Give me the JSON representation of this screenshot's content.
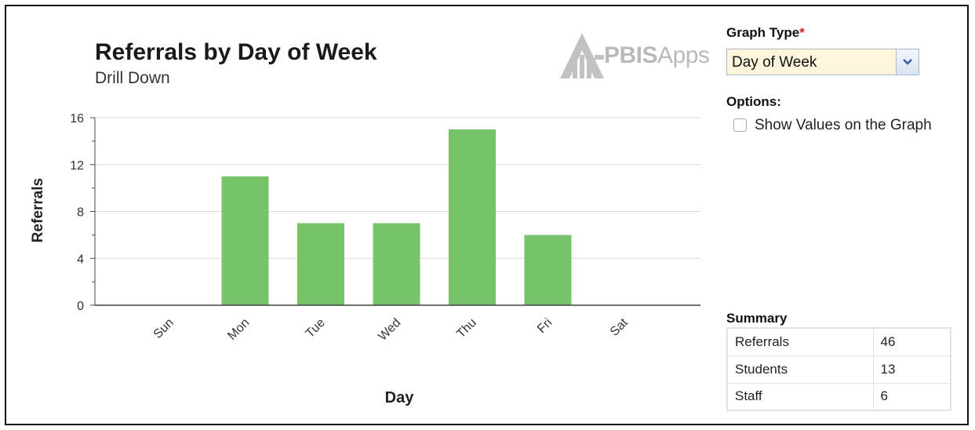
{
  "panel": {
    "graph_type_label": "Graph Type",
    "required_mark": "*",
    "graph_type_value": "Day of Week",
    "options_label": "Options:",
    "show_values_label": "Show Values on the Graph",
    "show_values_checked": false,
    "summary_label": "Summary",
    "summary_rows": [
      {
        "label": "Referrals",
        "value": "46"
      },
      {
        "label": "Students",
        "value": "13"
      },
      {
        "label": "Staff",
        "value": "6"
      }
    ]
  },
  "logo": {
    "text_bold": "PBIS",
    "text_light": "Apps"
  },
  "colors": {
    "bar": "#77c36a",
    "grid": "#d8d8d8",
    "axis": "#444444"
  },
  "chart_data": {
    "type": "bar",
    "title": "Referrals by Day of Week",
    "subtitle": "Drill Down",
    "xlabel": "Day",
    "ylabel": "Referrals",
    "categories": [
      "Sun",
      "Mon",
      "Tue",
      "Wed",
      "Thu",
      "Fri",
      "Sat"
    ],
    "values": [
      0,
      11,
      7,
      7,
      15,
      6,
      0
    ],
    "ylim": [
      0,
      16
    ],
    "yticks": [
      0,
      4,
      8,
      12,
      16
    ],
    "grid": true
  }
}
